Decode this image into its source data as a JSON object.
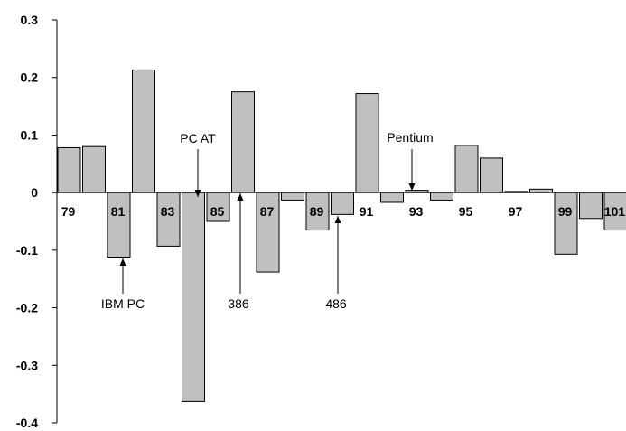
{
  "chart_data": {
    "type": "bar",
    "categories": [
      "79",
      "80",
      "81",
      "82",
      "83",
      "84",
      "85",
      "86",
      "87",
      "88",
      "89",
      "90",
      "91",
      "92",
      "93",
      "94",
      "95",
      "96",
      "97",
      "98",
      "99",
      "100",
      "101"
    ],
    "values": [
      0.078,
      0.08,
      -0.112,
      0.213,
      -0.093,
      -0.363,
      -0.05,
      0.175,
      -0.138,
      -0.013,
      -0.065,
      -0.038,
      0.172,
      -0.017,
      0.004,
      -0.013,
      0.082,
      0.06,
      0.002,
      0.006,
      -0.107,
      -0.045,
      -0.065
    ],
    "x_tick_labels": [
      "79",
      "81",
      "83",
      "85",
      "87",
      "89",
      "91",
      "93",
      "95",
      "97",
      "99",
      "101"
    ],
    "y_ticks": [
      "0.3",
      "0.2",
      "0.1",
      "0",
      "-0.1",
      "-0.2",
      "-0.3",
      "-0.4"
    ],
    "ylim": [
      -0.4,
      0.3
    ],
    "title": "",
    "xlabel": "",
    "ylabel": "",
    "grid": false,
    "colors": {
      "bar_fill": "#c0c0c0",
      "bar_stroke": "#000000"
    },
    "annotations": [
      {
        "label": "IBM PC",
        "category": "81"
      },
      {
        "label": "PC AT",
        "category": "84"
      },
      {
        "label": "386",
        "category": "86"
      },
      {
        "label": "486",
        "category": "90"
      },
      {
        "label": "Pentium",
        "category": "93"
      }
    ]
  }
}
